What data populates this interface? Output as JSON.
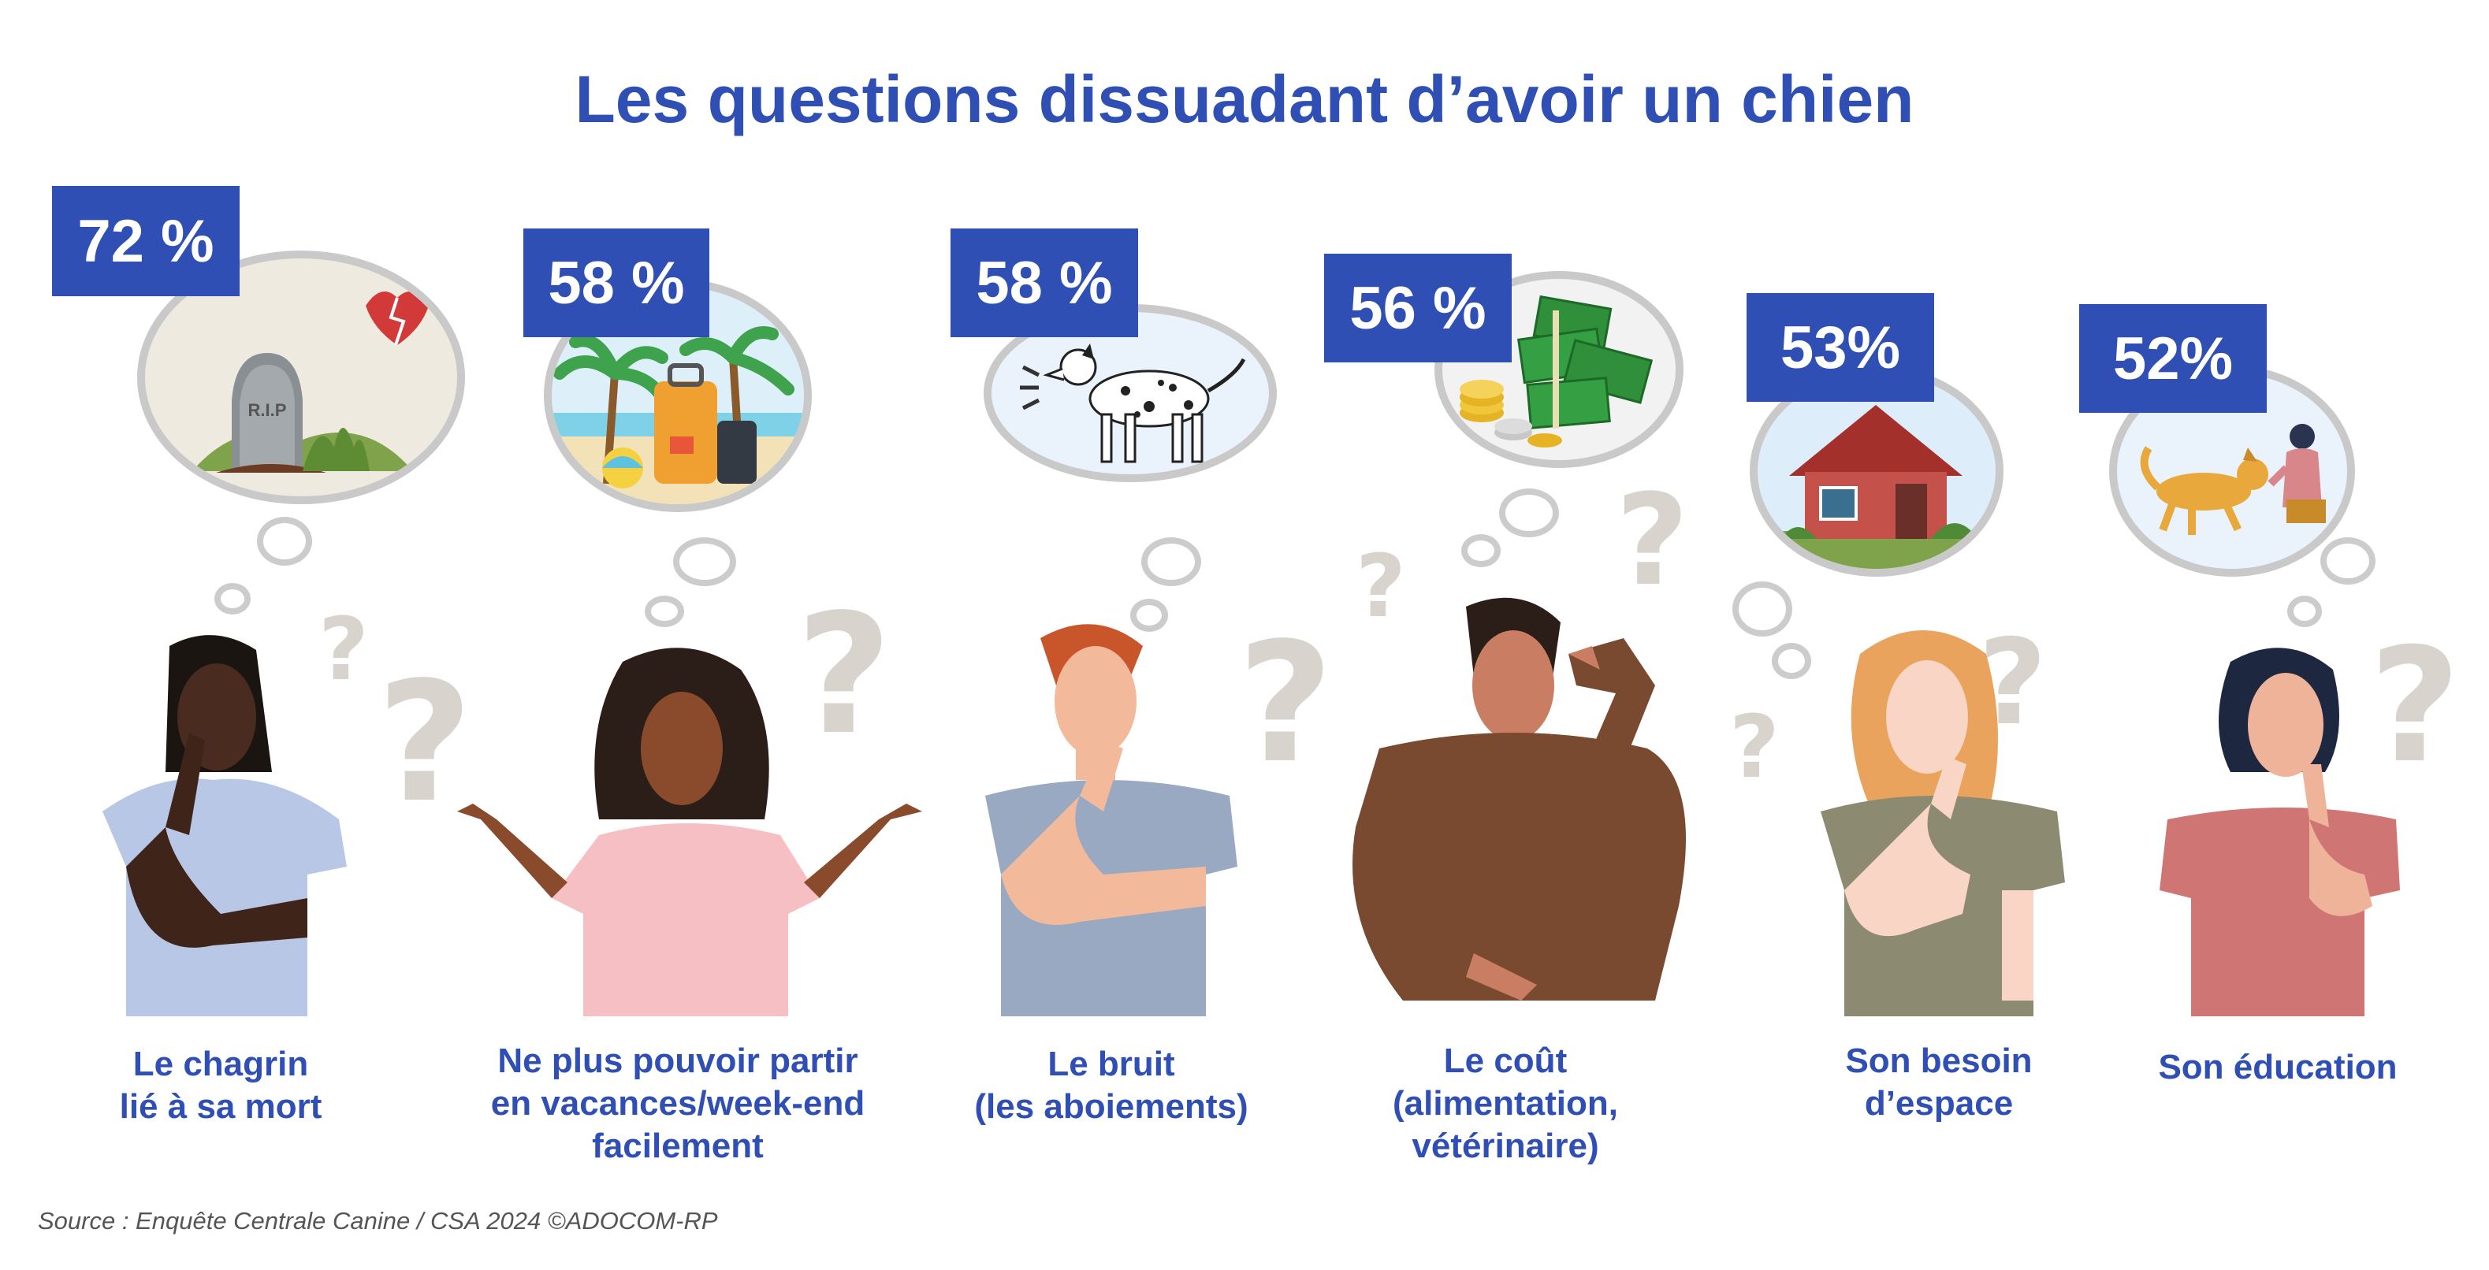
{
  "title": "Les questions dissuadant d’avoir un chien",
  "source": "Source : Enquête Centrale Canine / CSA 2024 ©ADOCOM-RP",
  "colors": {
    "accent": "#2f4fb4",
    "bubble_border": "#c9c9c9",
    "question_mark": "#d8d3cc"
  },
  "chart_data": {
    "type": "bar",
    "title": "Les questions dissuadant d’avoir un chien",
    "categories": [
      "Le chagrin lié à sa mort",
      "Ne plus pouvoir partir en vacances/week-end facilement",
      "Le bruit (les aboiements)",
      "Le coût (alimentation, vétérinaire)",
      "Son besoin d’espace",
      "Son éducation"
    ],
    "values": [
      72,
      58,
      58,
      56,
      53,
      52
    ],
    "unit": "%"
  },
  "items": [
    {
      "badge": "72 %",
      "label": "Le chagrin\nlié à sa mort",
      "icon": "tombstone-broken-heart-icon",
      "rip": "R.I.P"
    },
    {
      "badge": "58 %",
      "label": "Ne plus pouvoir partir\nen vacances/week-end\nfacilement",
      "icon": "suitcase-palm-trees-icon"
    },
    {
      "badge": "58 %",
      "label": "Le bruit\n(les aboiements)",
      "icon": "barking-dalmatian-icon"
    },
    {
      "badge": "56 %",
      "label": "Le coût\n(alimentation,\nvétérinaire)",
      "icon": "money-coins-icon"
    },
    {
      "badge": "53%",
      "label": "Son besoin\nd’espace",
      "icon": "house-icon"
    },
    {
      "badge": "52%",
      "label": "Son éducation",
      "icon": "person-training-dog-icon"
    }
  ]
}
